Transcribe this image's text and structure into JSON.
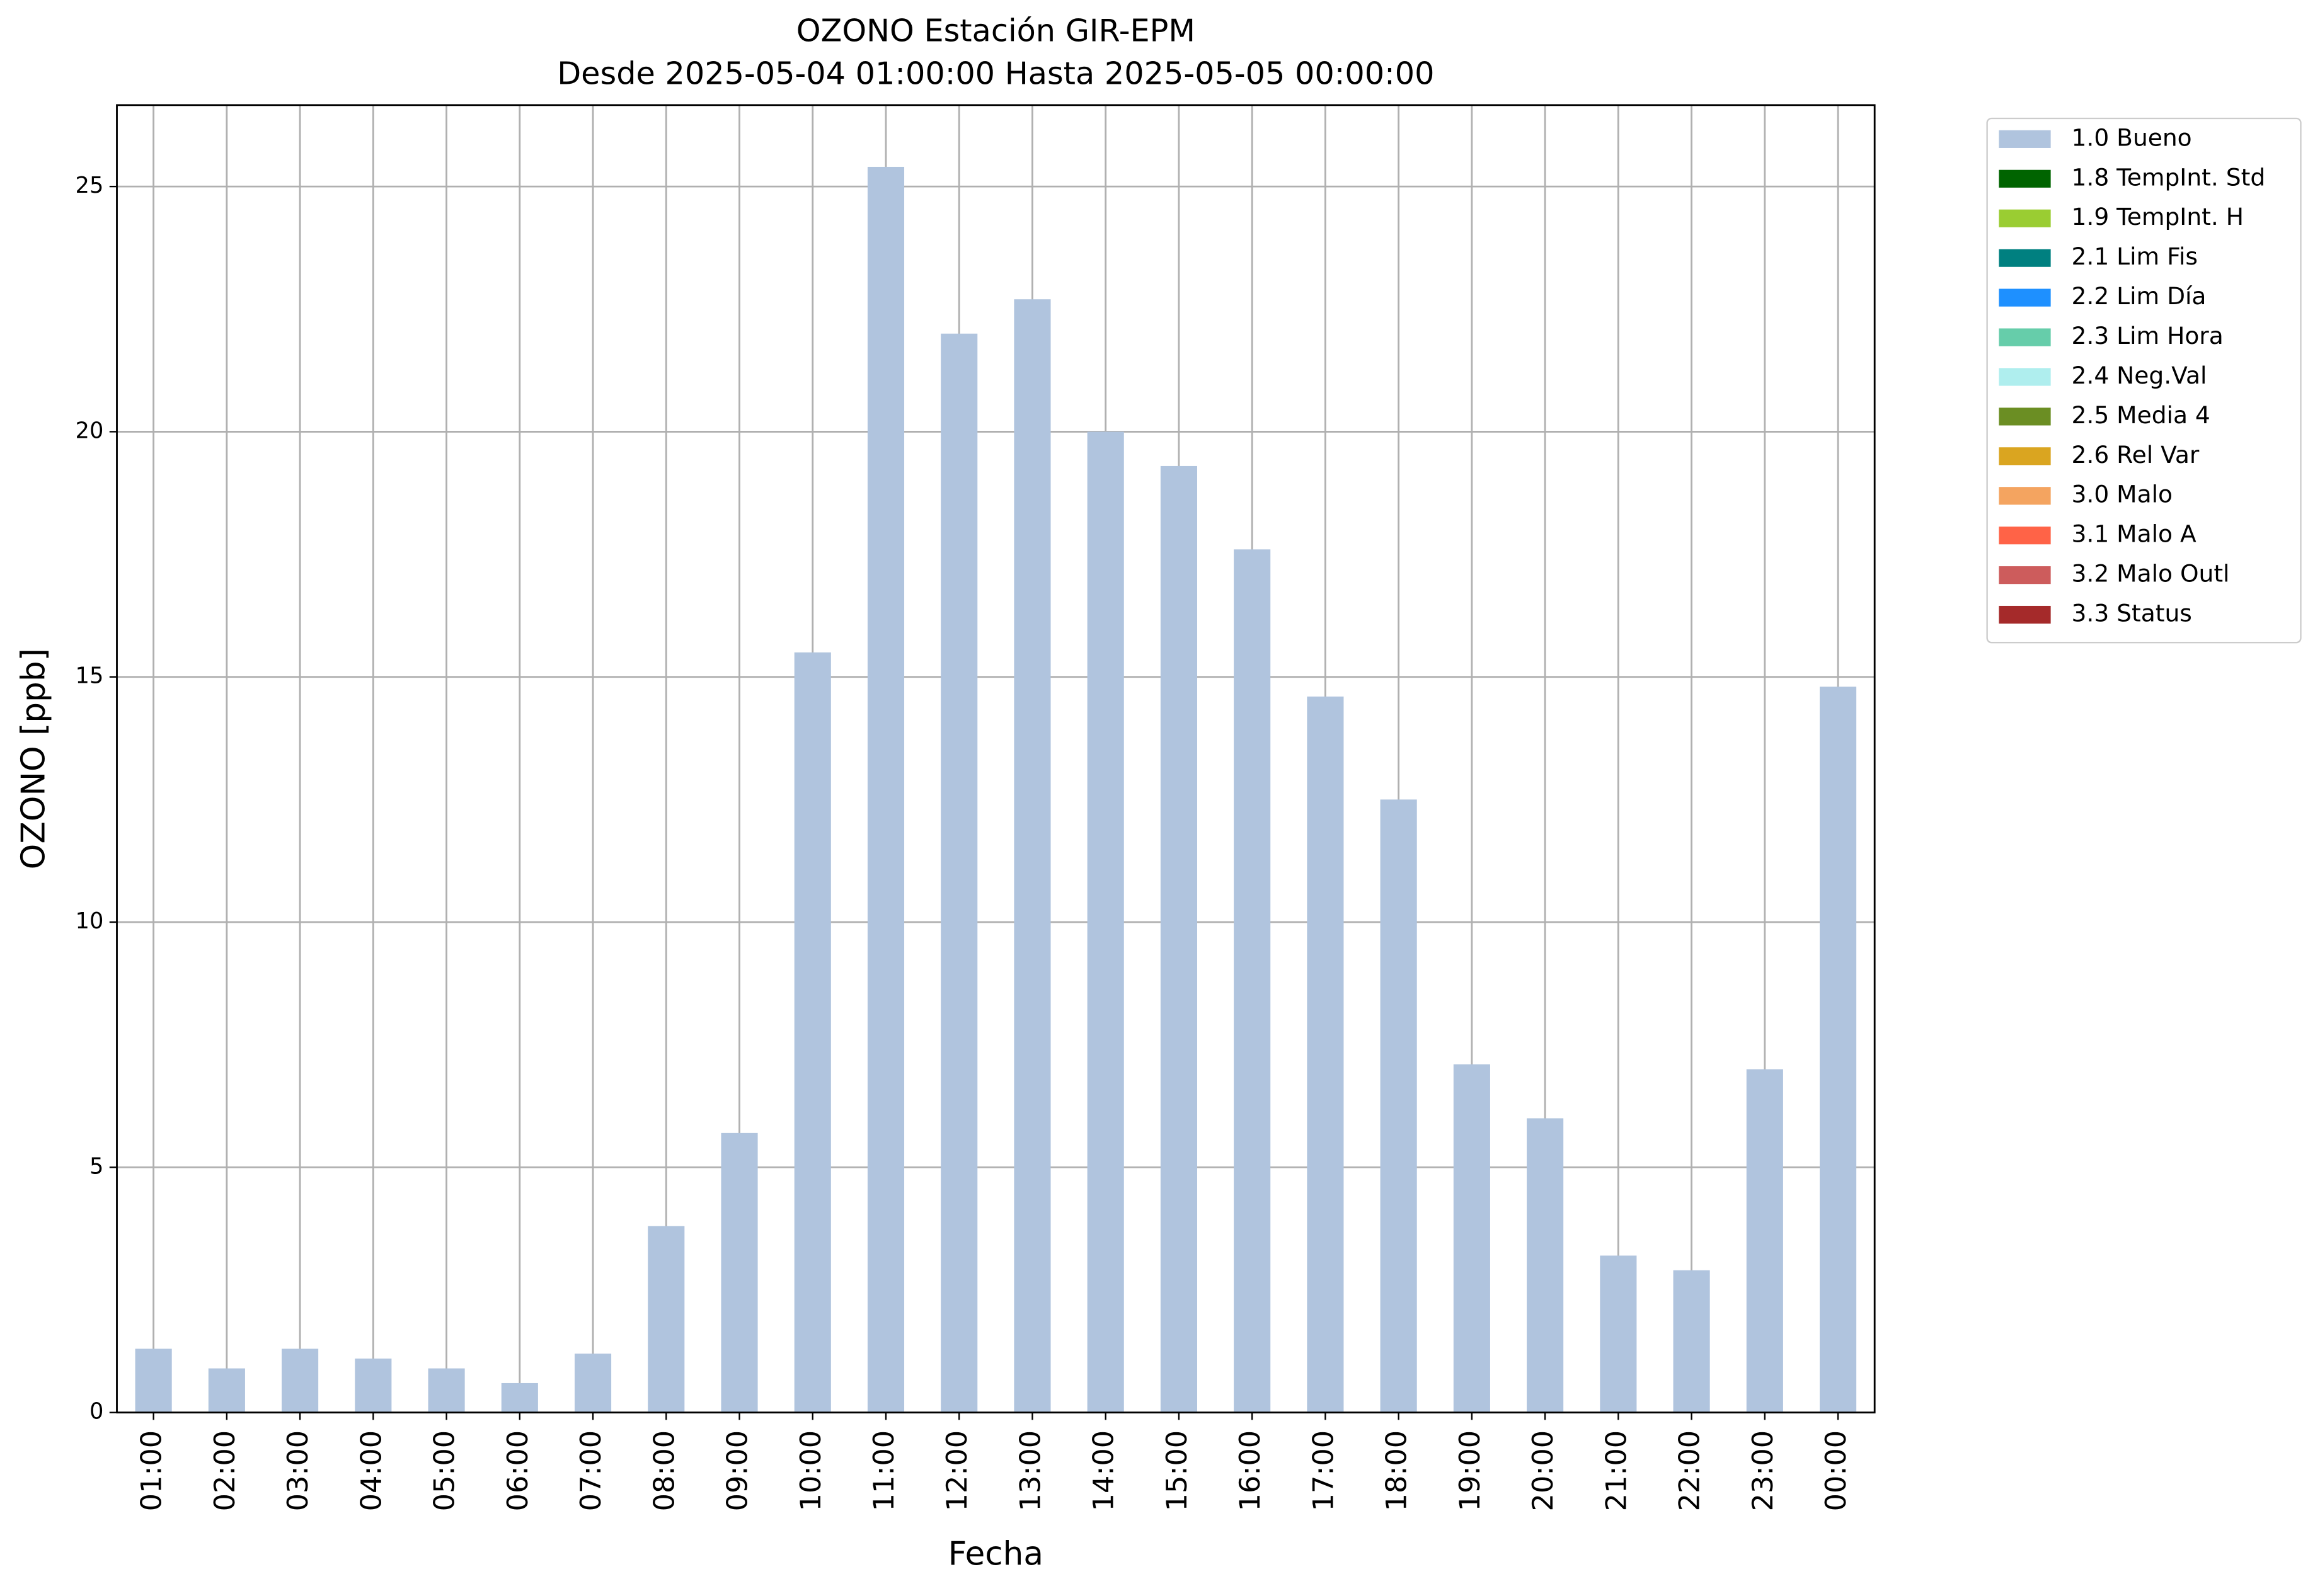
{
  "chart_data": {
    "type": "bar",
    "stacked": true,
    "title": "OZONO Estación GIR-EPM",
    "subtitle": "Desde 2025-05-04 01:00:00 Hasta 2025-05-05 00:00:00",
    "xlabel": "Fecha",
    "ylabel": "OZONO [ppb]",
    "categories": [
      "01:00",
      "02:00",
      "03:00",
      "04:00",
      "05:00",
      "06:00",
      "07:00",
      "08:00",
      "09:00",
      "10:00",
      "11:00",
      "12:00",
      "13:00",
      "14:00",
      "15:00",
      "16:00",
      "17:00",
      "18:00",
      "19:00",
      "20:00",
      "21:00",
      "22:00",
      "23:00",
      "00:00"
    ],
    "series": [
      {
        "name": "1.0 Bueno",
        "color": "#b0c4de",
        "values": [
          1.3,
          0.9,
          1.3,
          1.1,
          0.9,
          0.6,
          1.2,
          3.8,
          5.7,
          15.5,
          25.4,
          22.0,
          22.7,
          20.0,
          19.3,
          17.6,
          14.6,
          12.5,
          7.1,
          6.0,
          3.2,
          2.9,
          7.0,
          14.8
        ]
      },
      {
        "name": "1.8 TempInt. Std",
        "color": "#006400",
        "values": [
          null,
          null,
          null,
          null,
          null,
          null,
          null,
          null,
          null,
          null,
          null,
          null,
          null,
          null,
          null,
          null,
          null,
          null,
          null,
          null,
          null,
          null,
          null,
          null
        ]
      },
      {
        "name": "1.9 TempInt. H",
        "color": "#9acd32",
        "values": [
          null,
          null,
          null,
          null,
          null,
          null,
          null,
          null,
          null,
          null,
          null,
          null,
          null,
          null,
          null,
          null,
          null,
          null,
          null,
          null,
          null,
          null,
          null,
          null
        ]
      },
      {
        "name": "2.1 Lim Fis",
        "color": "#008080",
        "values": [
          null,
          null,
          null,
          null,
          null,
          null,
          null,
          null,
          null,
          null,
          null,
          null,
          null,
          null,
          null,
          null,
          null,
          null,
          null,
          null,
          null,
          null,
          null,
          null
        ]
      },
      {
        "name": "2.2 Lim Día",
        "color": "#1e90ff",
        "values": [
          null,
          null,
          null,
          null,
          null,
          null,
          null,
          null,
          null,
          null,
          null,
          null,
          null,
          null,
          null,
          null,
          null,
          null,
          null,
          null,
          null,
          null,
          null,
          null
        ]
      },
      {
        "name": "2.3 Lim Hora",
        "color": "#66cdaa",
        "values": [
          null,
          null,
          null,
          null,
          null,
          null,
          null,
          null,
          null,
          null,
          null,
          null,
          null,
          null,
          null,
          null,
          null,
          null,
          null,
          null,
          null,
          null,
          null,
          null
        ]
      },
      {
        "name": "2.4 Neg.Val",
        "color": "#afeeee",
        "values": [
          null,
          null,
          null,
          null,
          null,
          null,
          null,
          null,
          null,
          null,
          null,
          null,
          null,
          null,
          null,
          null,
          null,
          null,
          null,
          null,
          null,
          null,
          null,
          null
        ]
      },
      {
        "name": "2.5 Media 4",
        "color": "#6b8e23",
        "values": [
          null,
          null,
          null,
          null,
          null,
          null,
          null,
          null,
          null,
          null,
          null,
          null,
          null,
          null,
          null,
          null,
          null,
          null,
          null,
          null,
          null,
          null,
          null,
          null
        ]
      },
      {
        "name": "2.6 Rel Var",
        "color": "#daa520",
        "values": [
          null,
          null,
          null,
          null,
          null,
          null,
          null,
          null,
          null,
          null,
          null,
          null,
          null,
          null,
          null,
          null,
          null,
          null,
          null,
          null,
          null,
          null,
          null,
          null
        ]
      },
      {
        "name": "3.0 Malo",
        "color": "#f4a460",
        "values": [
          null,
          null,
          null,
          null,
          null,
          null,
          null,
          null,
          null,
          null,
          null,
          null,
          null,
          null,
          null,
          null,
          null,
          null,
          null,
          null,
          null,
          null,
          null,
          null
        ]
      },
      {
        "name": "3.1 Malo A",
        "color": "#ff6347",
        "values": [
          null,
          null,
          null,
          null,
          null,
          null,
          null,
          null,
          null,
          null,
          null,
          null,
          null,
          null,
          null,
          null,
          null,
          null,
          null,
          null,
          null,
          null,
          null,
          null
        ]
      },
      {
        "name": "3.2 Malo Outl",
        "color": "#cd5c5c",
        "values": [
          null,
          null,
          null,
          null,
          null,
          null,
          null,
          null,
          null,
          null,
          null,
          null,
          null,
          null,
          null,
          null,
          null,
          null,
          null,
          null,
          null,
          null,
          null,
          null
        ]
      },
      {
        "name": "3.3 Status",
        "color": "#a52a2a",
        "values": [
          null,
          null,
          null,
          null,
          null,
          null,
          null,
          null,
          null,
          null,
          null,
          null,
          null,
          null,
          null,
          null,
          null,
          null,
          null,
          null,
          null,
          null,
          null,
          null
        ]
      }
    ],
    "ylim": [
      0,
      26.66
    ],
    "yticks": [
      0,
      5,
      10,
      15,
      20,
      25
    ],
    "grid": true,
    "legend": "outside upper right"
  }
}
